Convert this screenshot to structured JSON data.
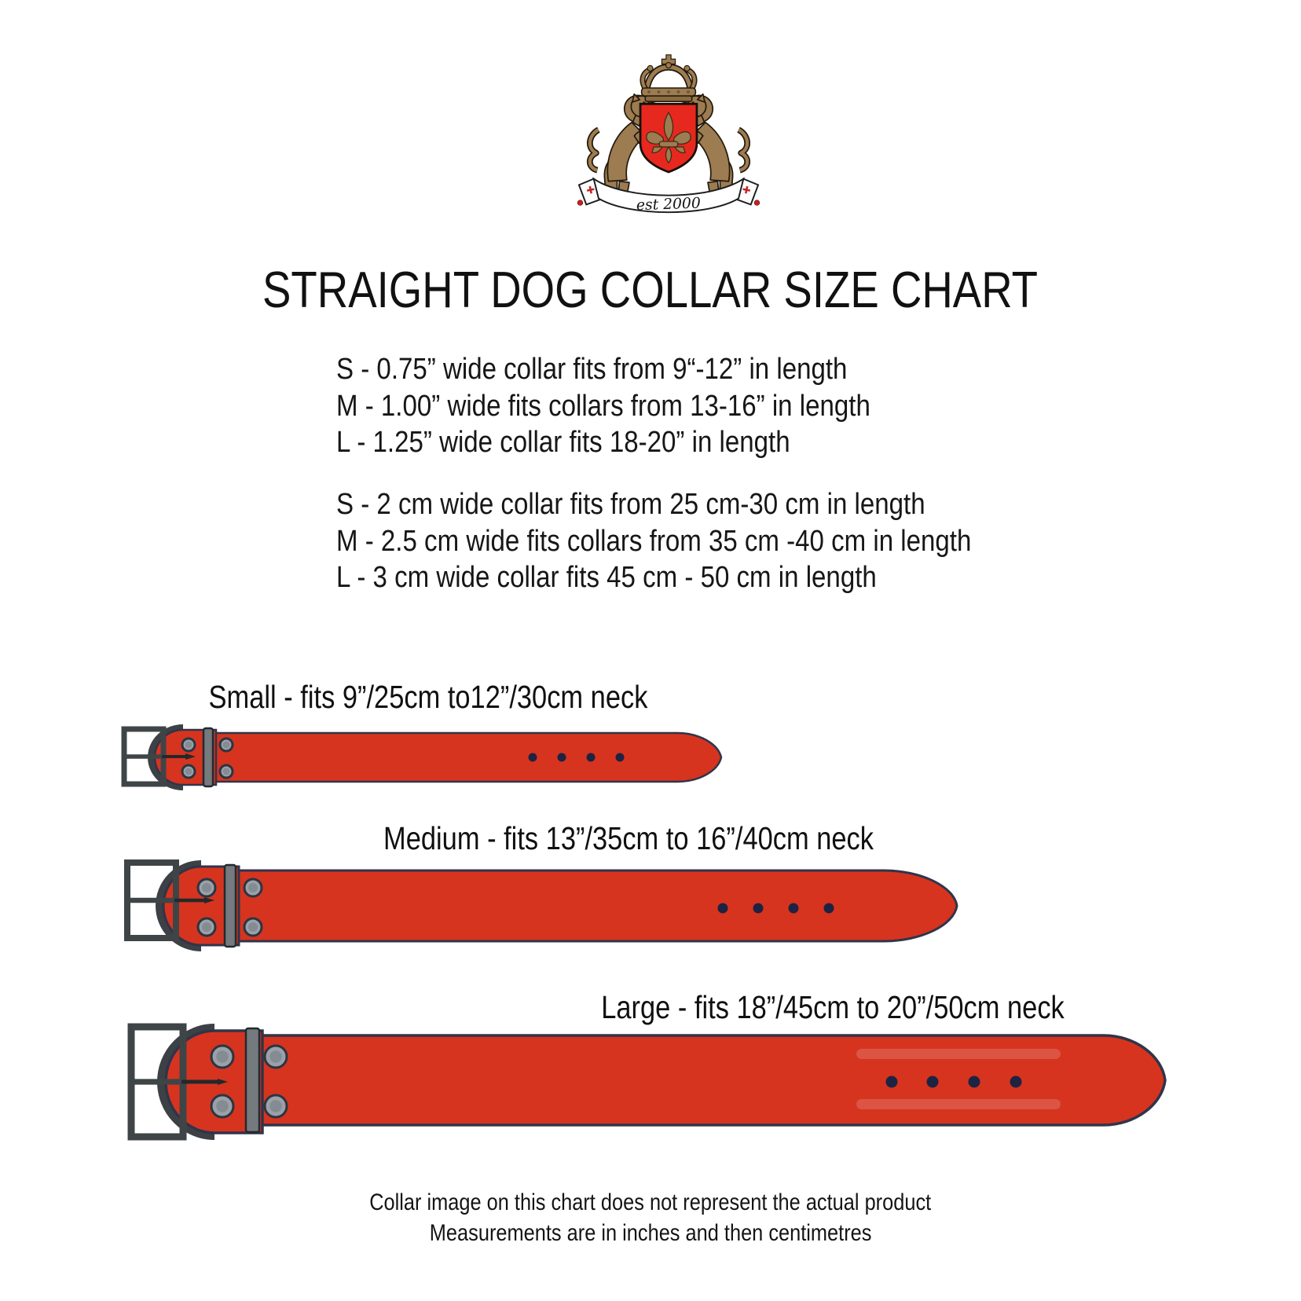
{
  "logo": {
    "est_text": "est 2000"
  },
  "title": "STRAIGHT DOG COLLAR SIZE CHART",
  "sizes_inches": [
    "S - 0.75” wide collar fits from 9“-12” in length",
    "M - 1.00” wide fits collars from 13-16” in length",
    "L - 1.25” wide collar fits 18-20” in length"
  ],
  "sizes_cm": [
    "S - 2 cm wide collar fits from 25 cm-30 cm in length",
    "M - 2.5 cm wide fits collars from 35 cm -40 cm in length",
    "L - 3 cm wide collar fits 45 cm - 50 cm in length"
  ],
  "collars": [
    {
      "id": "small",
      "label": "Small - fits 9”/25cm to12”/30cm neck"
    },
    {
      "id": "medium",
      "label": "Medium - fits 13”/35cm to 16”/40cm neck"
    },
    {
      "id": "large",
      "label": "Large - fits 18”/45cm to 20”/50cm neck"
    }
  ],
  "footer": [
    "Collar image on this chart does not represent the actual product",
    "Measurements are in inches and then centimetres"
  ],
  "colors": {
    "collar_red": "#d6341f",
    "shield_red": "#e7281f",
    "lion_gold": "#9d7c51",
    "buckle_gray": "#3f4547",
    "outline_navy": "#30344a",
    "hole_navy": "#1d2342",
    "banner_cross_red": "#c52222"
  }
}
